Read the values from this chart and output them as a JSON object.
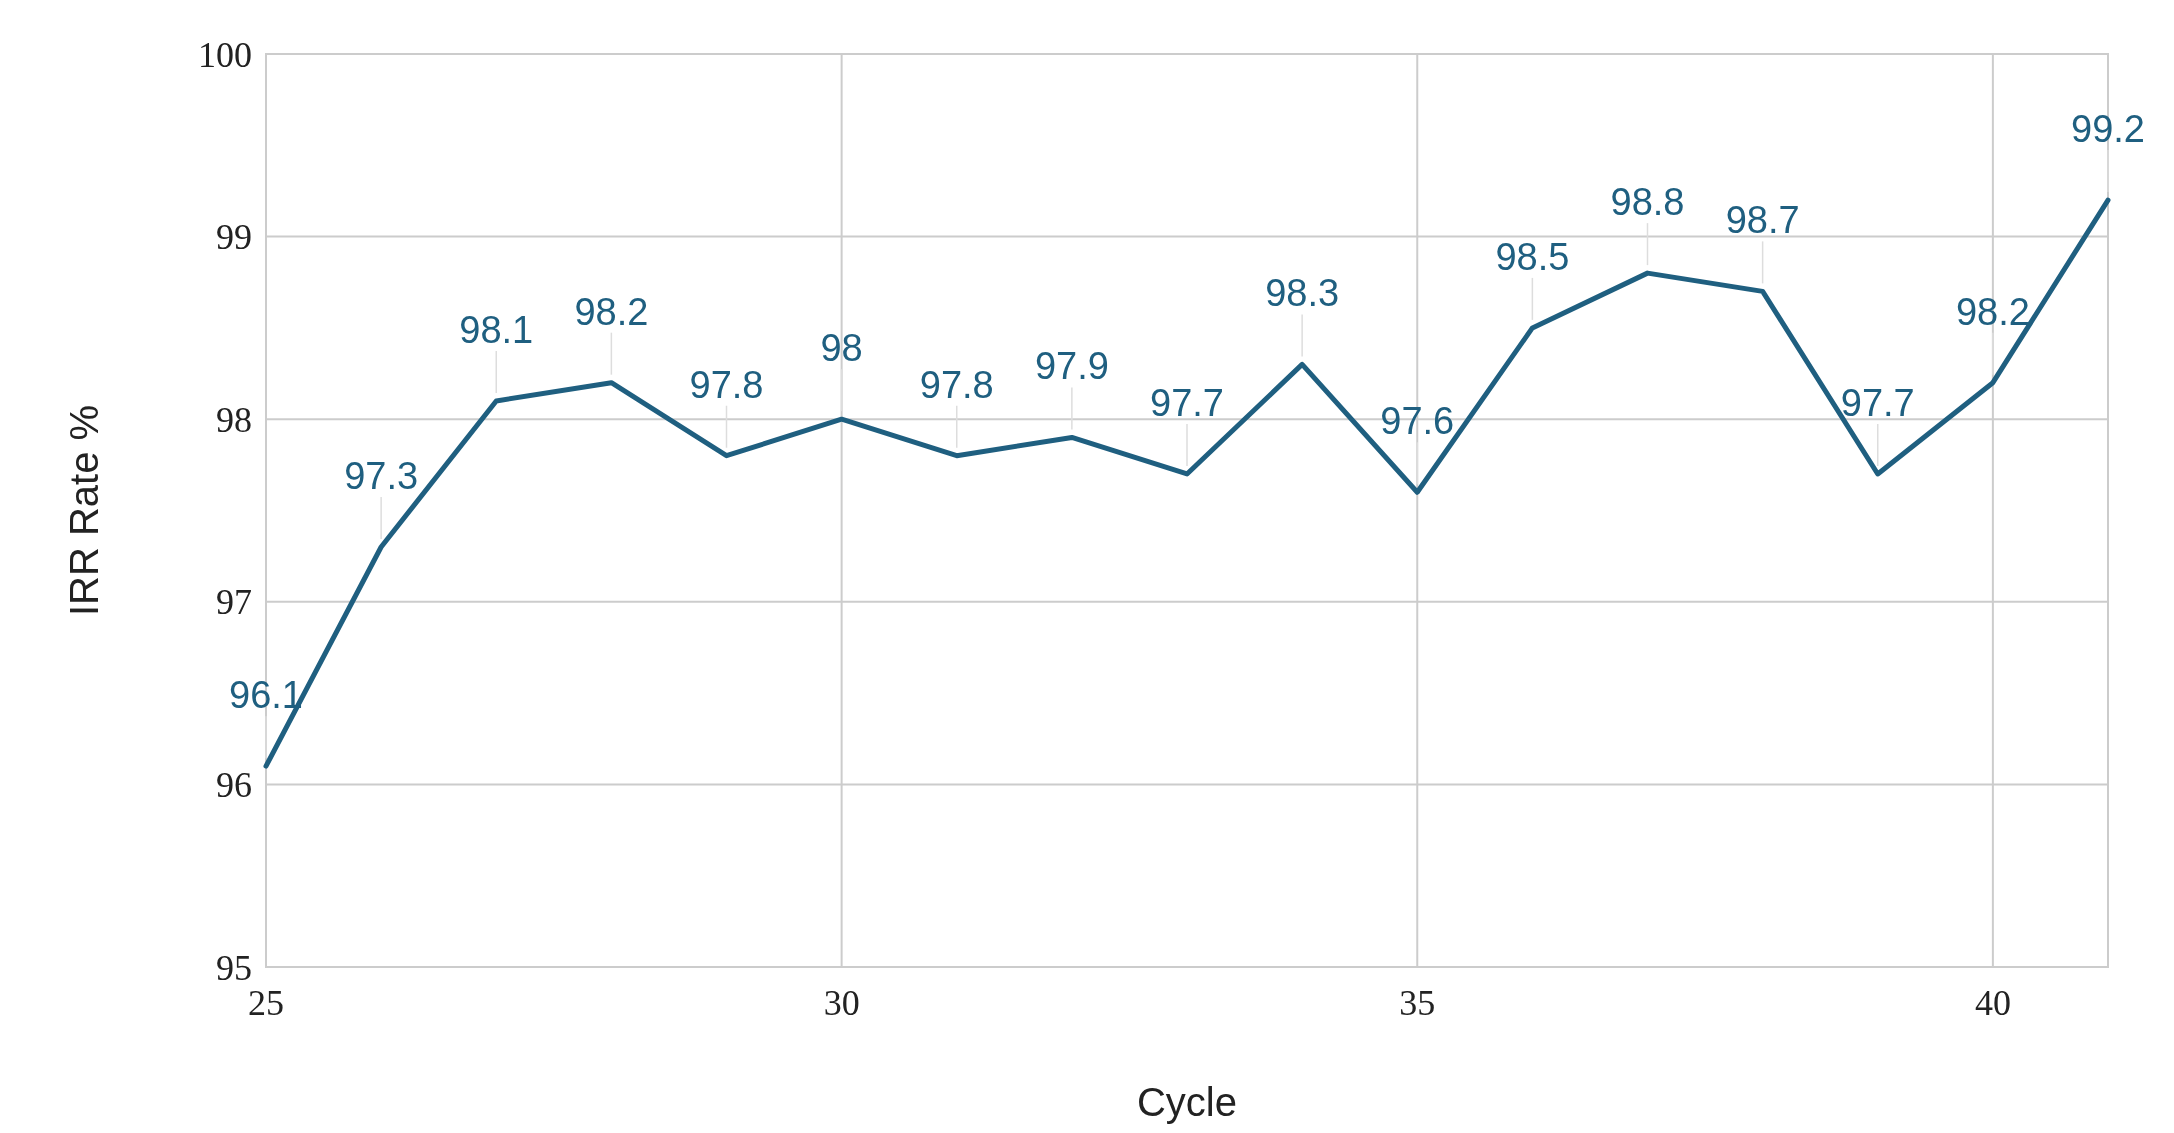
{
  "chart_data": {
    "type": "line",
    "xlabel": "Cycle",
    "ylabel": "IRR Rate %",
    "x": [
      25,
      26,
      27,
      28,
      29,
      30,
      31,
      32,
      33,
      34,
      35,
      36,
      37,
      38,
      39,
      40,
      41
    ],
    "series": [
      {
        "color": "#1f5f80",
        "values": [
          96.1,
          97.3,
          98.1,
          98.2,
          97.8,
          98,
          97.8,
          97.9,
          97.7,
          98.3,
          97.6,
          98.5,
          98.8,
          98.7,
          97.7,
          98.2,
          99.2
        ]
      }
    ],
    "xlim": [
      25,
      41
    ],
    "xticks": [
      25,
      30,
      35,
      40
    ],
    "ylim": [
      95,
      100
    ],
    "yticks": [
      95,
      96,
      97,
      98,
      99,
      100
    ],
    "grid": true,
    "data_labels": true,
    "marker": "none",
    "line_style": "solid"
  }
}
